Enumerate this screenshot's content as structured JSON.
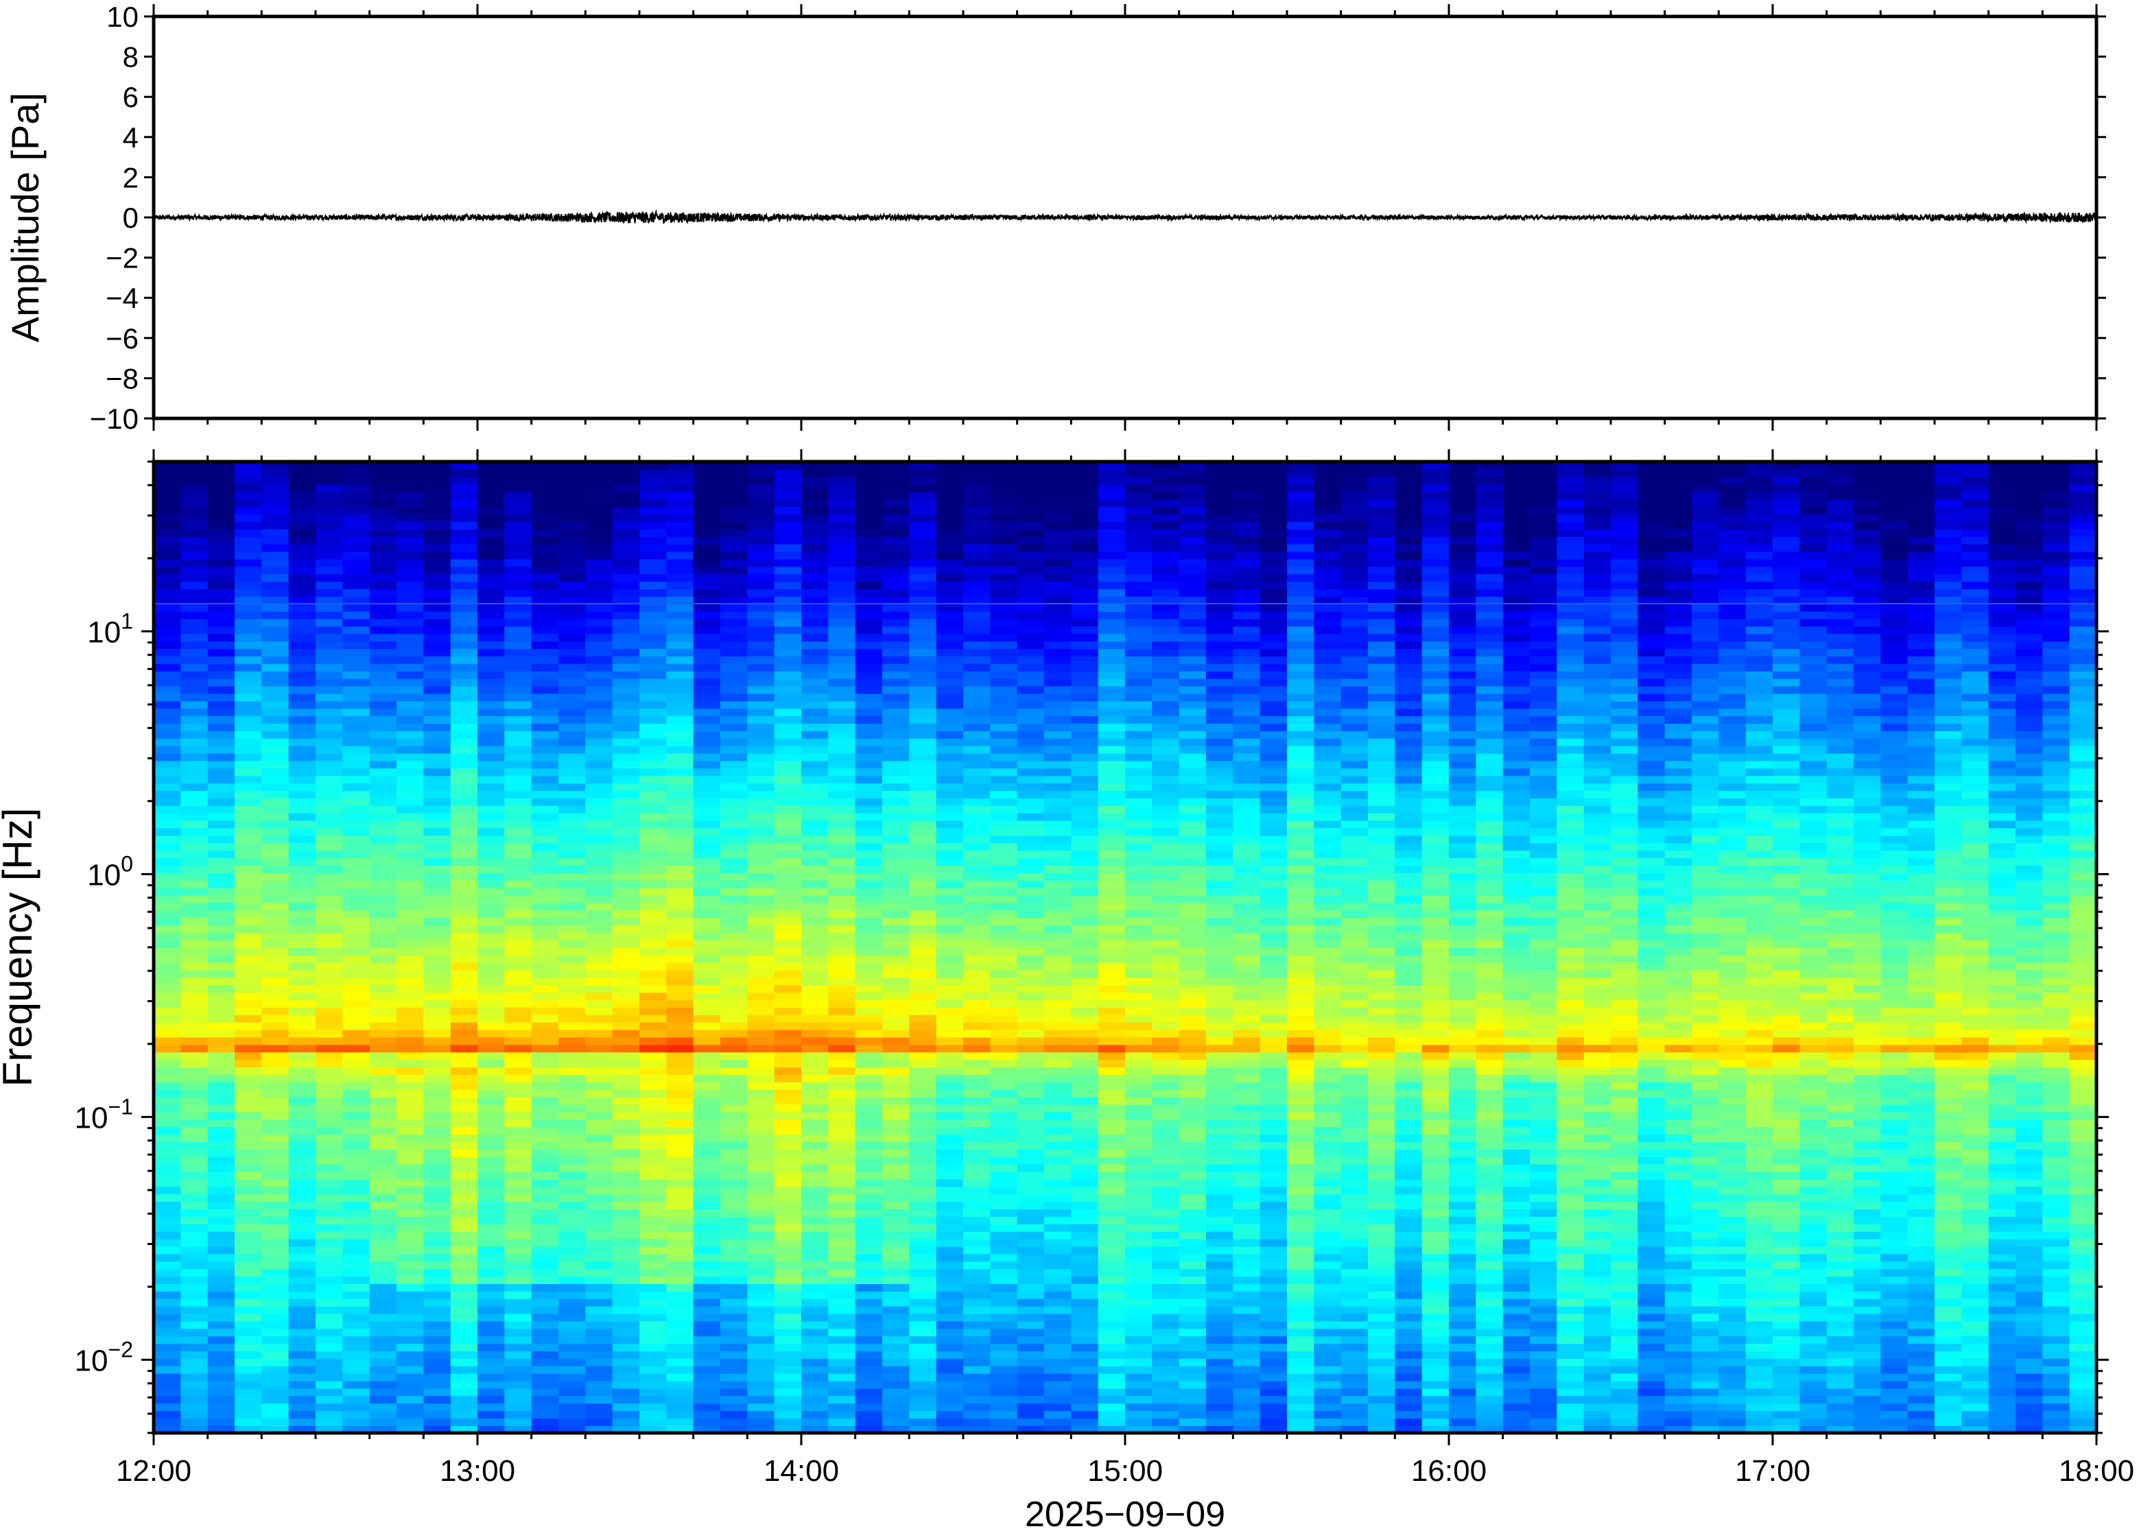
{
  "chart_data": [
    {
      "type": "line",
      "title": "",
      "xlabel": "",
      "ylabel": "Amplitude [Pa]",
      "ylim": [
        -10,
        10
      ],
      "yticks": [
        10,
        8,
        6,
        4,
        2,
        0,
        -2,
        -4,
        -6,
        -8,
        -10
      ],
      "ytick_labels": [
        "10",
        "8",
        "6",
        "4",
        "2",
        "0",
        "−2",
        "−4",
        "−6",
        "−8",
        "−10"
      ],
      "xlim": [
        "12:00",
        "18:00"
      ],
      "grid": false,
      "series": [
        {
          "x_hours": [
            12.0,
            12.5,
            13.0,
            13.25,
            13.5,
            13.75,
            14.0,
            14.5,
            15.0,
            15.5,
            16.0,
            16.5,
            17.0,
            17.5,
            18.0
          ],
          "envelope": [
            0.12,
            0.12,
            0.15,
            0.2,
            0.3,
            0.22,
            0.15,
            0.12,
            0.12,
            0.1,
            0.1,
            0.1,
            0.15,
            0.15,
            0.25
          ],
          "color": "#000000"
        }
      ]
    },
    {
      "type": "heatmap",
      "title": "",
      "xlabel": "2025−09−09",
      "ylabel": "Frequency [Hz]",
      "yscale": "log",
      "ylim": [
        0.005,
        50
      ],
      "yticks": [
        0.01,
        0.1,
        1,
        10
      ],
      "ytick_labels": [
        {
          "base": "10",
          "exp": "−2"
        },
        {
          "base": "10",
          "exp": "−1"
        },
        {
          "base": "10",
          "exp": "0"
        },
        {
          "base": "10",
          "exp": "1"
        }
      ],
      "xlim": [
        "12:00",
        "18:00"
      ],
      "xticks": [
        "12:00",
        "13:00",
        "14:00",
        "15:00",
        "16:00",
        "17:00",
        "18:00"
      ],
      "colormap": [
        "#00007f",
        "#0000ff",
        "#007fff",
        "#00ffff",
        "#7fff7f",
        "#ffff00",
        "#ff7f00",
        "#ff0000"
      ],
      "features": {
        "microseism_band_hz": 0.18,
        "lowfreq_enhanced_window": [
          "13:00",
          "14:00"
        ],
        "tonal_line_hz": 13
      }
    }
  ]
}
